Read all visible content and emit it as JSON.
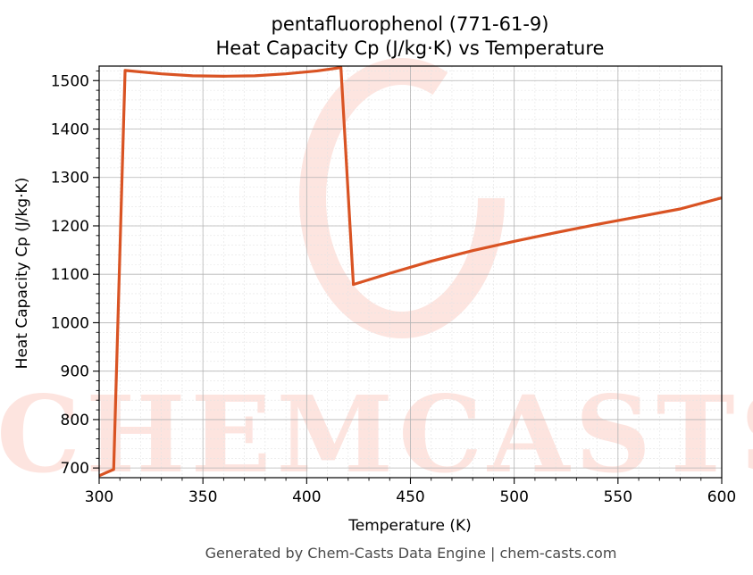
{
  "chart_data": {
    "type": "line",
    "title": "pentafluorophenol (771-61-9)",
    "subtitle": "Heat Capacity Cp (J/kg·K) vs Temperature",
    "xlabel": "Temperature (K)",
    "ylabel": "Heat Capacity Cp (J/kg·K)",
    "xlim": [
      300,
      600
    ],
    "ylim": [
      680,
      1530
    ],
    "xticks": [
      300,
      350,
      400,
      450,
      500,
      550,
      600
    ],
    "yticks": [
      700,
      800,
      900,
      1000,
      1100,
      1200,
      1300,
      1400,
      1500
    ],
    "grid": true,
    "line_color": "#d95323",
    "series": [
      {
        "x": [
          300,
          307,
          312.5,
          330,
          345,
          360,
          375,
          390,
          405,
          416.5,
          422.5,
          440,
          460,
          480,
          500,
          520,
          540,
          560,
          580,
          600
        ],
        "y": [
          684,
          697,
          1521,
          1514,
          1510,
          1509,
          1510,
          1514,
          1520,
          1527,
          1079,
          1102,
          1127,
          1149,
          1168,
          1186,
          1203,
          1219,
          1235,
          1258
        ]
      }
    ]
  },
  "watermark": {
    "text": "CHEMCASTS",
    "color": "#fde0da"
  },
  "footer": "Generated by Chem-Casts Data Engine | chem-casts.com"
}
